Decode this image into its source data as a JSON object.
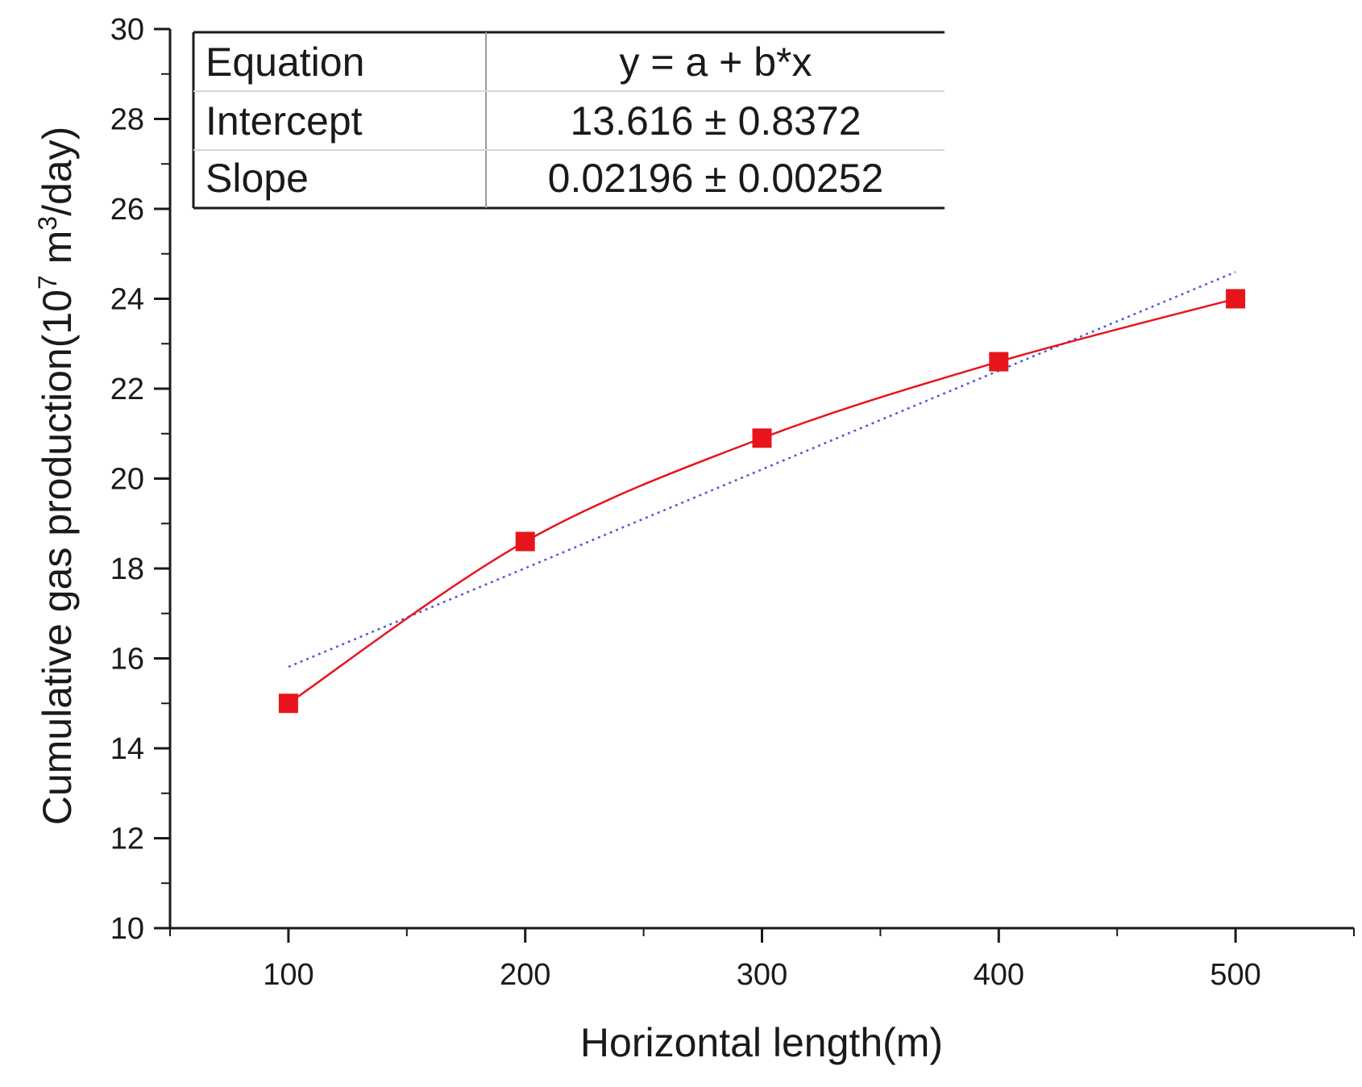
{
  "chart_data": {
    "type": "scatter",
    "xlabel": "Horizontal length(m)",
    "ylabel": {
      "base": "Cumulative gas production(10",
      "sup1": "7",
      "mid": " m",
      "sup2": "3",
      "end": "/day)"
    },
    "xlim": [
      50,
      550
    ],
    "ylim": [
      10,
      30
    ],
    "xticks": [
      100,
      200,
      300,
      400,
      500
    ],
    "yticks": [
      10,
      12,
      14,
      16,
      18,
      20,
      22,
      24,
      26,
      28,
      30
    ],
    "grid": false,
    "series": [
      {
        "values": [
          {
            "x": 100,
            "y": 15.0
          },
          {
            "x": 200,
            "y": 18.6
          },
          {
            "x": 300,
            "y": 20.9
          },
          {
            "x": 400,
            "y": 22.6
          },
          {
            "x": 500,
            "y": 24.0
          }
        ],
        "style": "scatter-with-smooth-line",
        "color": "#e8141c"
      },
      {
        "values": [
          {
            "x": 100,
            "y": 15.812
          },
          {
            "x": 500,
            "y": 24.596
          }
        ],
        "style": "dotted-linear-fit",
        "color": "#4d5bd6"
      }
    ],
    "annotation_table": {
      "rows": [
        {
          "label": "Equation",
          "value": "y = a + b*x"
        },
        {
          "label": "Intercept",
          "value": "13.616 ± 0.8372"
        },
        {
          "label": "Slope",
          "value": "0.02196 ± 0.00252"
        }
      ]
    }
  }
}
